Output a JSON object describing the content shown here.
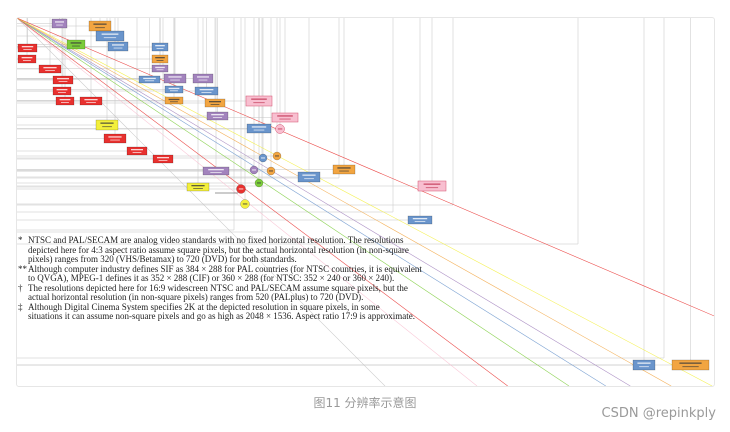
{
  "figure": {
    "footnotes": [
      {
        "marker": "*",
        "lines": [
          "NTSC and PAL/SECAM are analog video standards with no fixed horizontal resolution. The resolutions",
          "depicted here for 4:3 aspect ratio assume square pixels, but the actual horizontal resolution (in non-square",
          "pixels) ranges from 320 (VHS/Betamax) to 720 (DVD) for both standards."
        ]
      },
      {
        "marker": "**",
        "lines": [
          "Although computer industry defines SIF as 384 × 288 for PAL countries (for NTSC countries, it is equivalent",
          "to QVGA), MPEG-1 defines it as 352 × 288 (CIF) or 360 × 288 (for NTSC: 352 × 240 or 360 × 240)."
        ]
      },
      {
        "marker": "†",
        "lines": [
          "The resolutions depicted here for 16:9 widescreen NTSC and PAL/SECAM assume square pixels, but the",
          "actual horizontal resolution (in non-square pixels) ranges from 520 (PALplus) to 720 (DVD)."
        ]
      },
      {
        "marker": "‡",
        "lines": [
          "Although Digital Cinema System specifies 2K at the depicted resolution in square pixels, in some",
          "situations it can assume non-square pixels and go as high as 2048 × 1536. Aspect ratio 17:9 is approximate."
        ]
      }
    ],
    "caption": "图11 分辨率示意图"
  },
  "watermark": "CSDN @repinkply",
  "diagram_palette": {
    "red": "#e8312f",
    "orange": "#f2a541",
    "yellow": "#f3ef3c",
    "green": "#7ccc3a",
    "blue": "#6a95cc",
    "purple": "#a283bd",
    "pink": "#f8bfd0",
    "gray": "#c4c4c4"
  }
}
